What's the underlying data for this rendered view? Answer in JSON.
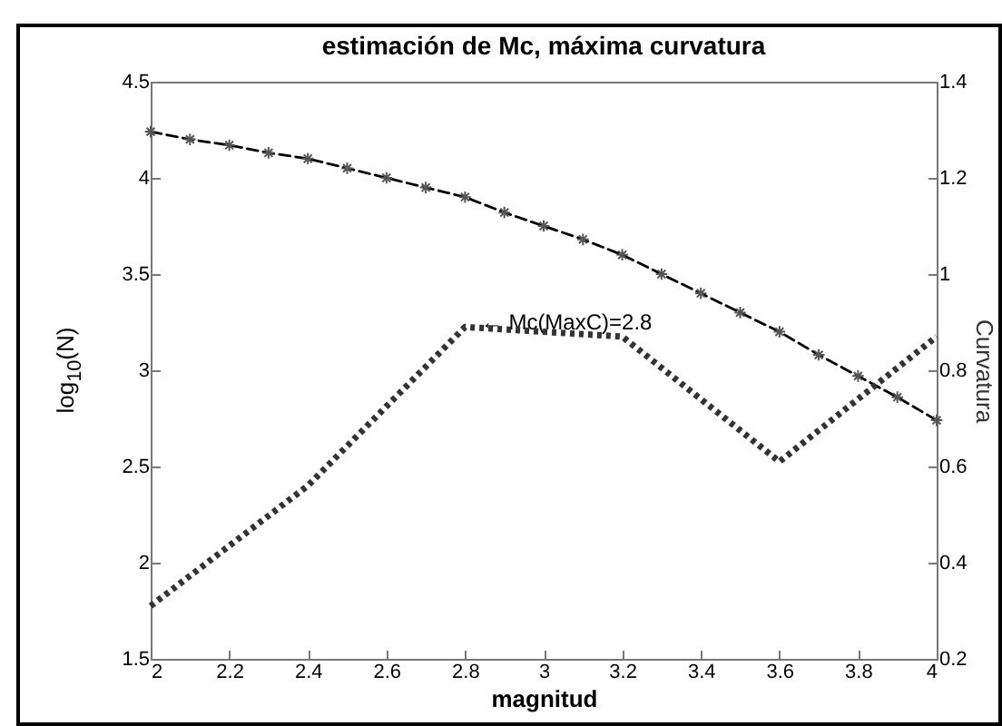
{
  "chart_data": {
    "type": "line",
    "title": "estimación de Mc, máxima curvatura",
    "xlabel": "magnitud",
    "ylabel": "log$_{10}$(N)",
    "y2label": "Curvatura",
    "xlim": [
      2,
      4
    ],
    "xticks": [
      2,
      2.2,
      2.4,
      2.6,
      2.8,
      3,
      3.2,
      3.4,
      3.6,
      3.8,
      4
    ],
    "ylim": [
      1.5,
      4.5
    ],
    "yticks": [
      1.5,
      2,
      2.5,
      3,
      3.5,
      4,
      4.5
    ],
    "y2lim": [
      0.2,
      1.4
    ],
    "y2ticks": [
      0.2,
      0.4,
      0.6,
      0.8,
      1,
      1.2,
      1.4
    ],
    "grid": false,
    "series": [
      {
        "color": "#000000",
        "line_style": "dashed",
        "marker": "cross",
        "x": [
          2,
          2.1,
          2.2,
          2.3,
          2.4,
          2.5,
          2.6,
          2.7,
          2.8,
          2.9,
          3,
          3.1,
          3.2,
          3.3,
          3.4,
          3.5,
          3.6,
          3.7,
          3.8,
          3.9,
          4
        ],
        "values": [
          4.24,
          4.2,
          4.17,
          4.13,
          4.1,
          4.05,
          4.0,
          3.95,
          3.9,
          3.82,
          3.75,
          3.68,
          3.6,
          3.5,
          3.4,
          3.3,
          3.2,
          3.08,
          2.97,
          2.86,
          2.74
        ]
      },
      {
        "color": "#333333",
        "line_style": "dotted",
        "marker": "none",
        "axis": "y2",
        "x": [
          2,
          2.4,
          2.8,
          3.2,
          3.6,
          4
        ],
        "values": [
          0.31,
          0.56,
          0.89,
          0.87,
          0.61,
          0.87
        ]
      }
    ],
    "annotations": [
      {
        "text": "← Mc(MaxC)=2.8",
        "x": 2.84,
        "y": 3.25
      }
    ]
  }
}
